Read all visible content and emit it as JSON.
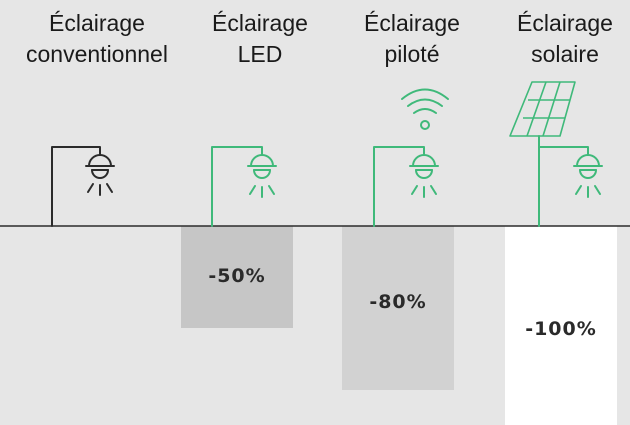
{
  "columns": [
    {
      "line1": "Éclairage",
      "line2": "conventionnel",
      "icon": "street-lamp-icon",
      "lamp_color": "#2b2b2b"
    },
    {
      "line1": "Éclairage",
      "line2": "LED",
      "icon": "led-street-lamp-icon",
      "lamp_color": "#3fb97a",
      "reduction": "-50%"
    },
    {
      "line1": "Éclairage",
      "line2": "piloté",
      "icon": "wifi-street-lamp-icon",
      "lamp_color": "#3fb97a",
      "reduction": "-80%"
    },
    {
      "line1": "Éclairage",
      "line2": "solaire",
      "icon": "solar-street-lamp-icon",
      "lamp_color": "#3fb97a",
      "reduction": "-100%"
    }
  ],
  "colors": {
    "background": "#e6e6e6",
    "bar_led": "#c6c6c6",
    "bar_pilote": "#d2d2d2",
    "bar_solaire": "#ffffff",
    "accent": "#3fb97a"
  }
}
